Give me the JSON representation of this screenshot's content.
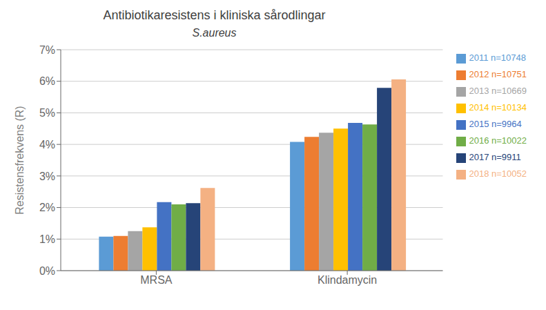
{
  "chart_data": {
    "type": "bar",
    "title": "Antibiotikaresistens i kliniska sårodlingar",
    "subtitle": "S.aureus",
    "ylabel": "Resistensfrekvens (R)",
    "categories": [
      "MRSA",
      "Klindamycin"
    ],
    "series": [
      {
        "name": "2011   n=10748",
        "color": "#5B9BD5",
        "values": [
          1.08,
          4.08
        ]
      },
      {
        "name": "2012   n=10751",
        "color": "#ED7D31",
        "values": [
          1.1,
          4.24
        ]
      },
      {
        "name": "2013   n=10669",
        "color": "#A5A5A5",
        "values": [
          1.25,
          4.37
        ]
      },
      {
        "name": "2014   n=10134",
        "color": "#FFC000",
        "values": [
          1.37,
          4.5
        ]
      },
      {
        "name": "2015   n=9964",
        "color": "#4472C4",
        "values": [
          2.17,
          4.68
        ]
      },
      {
        "name": "2016   n=10022",
        "color": "#70AD47",
        "values": [
          2.1,
          4.63
        ]
      },
      {
        "name": "2017   n=9911",
        "color": "#264478",
        "values": [
          2.14,
          5.79
        ]
      },
      {
        "name": "2018   n=10052",
        "color": "#F4B183",
        "values": [
          2.62,
          6.06
        ]
      }
    ],
    "ylim": [
      0,
      7
    ],
    "yticks": [
      {
        "value": 0,
        "label": "0%"
      },
      {
        "value": 1,
        "label": "1%"
      },
      {
        "value": 2,
        "label": "2%"
      },
      {
        "value": 3,
        "label": "3%"
      },
      {
        "value": 4,
        "label": "4%"
      },
      {
        "value": 5,
        "label": "5%"
      },
      {
        "value": 6,
        "label": "6%"
      },
      {
        "value": 7,
        "label": "7%"
      }
    ],
    "grid": true,
    "legend": "right"
  }
}
